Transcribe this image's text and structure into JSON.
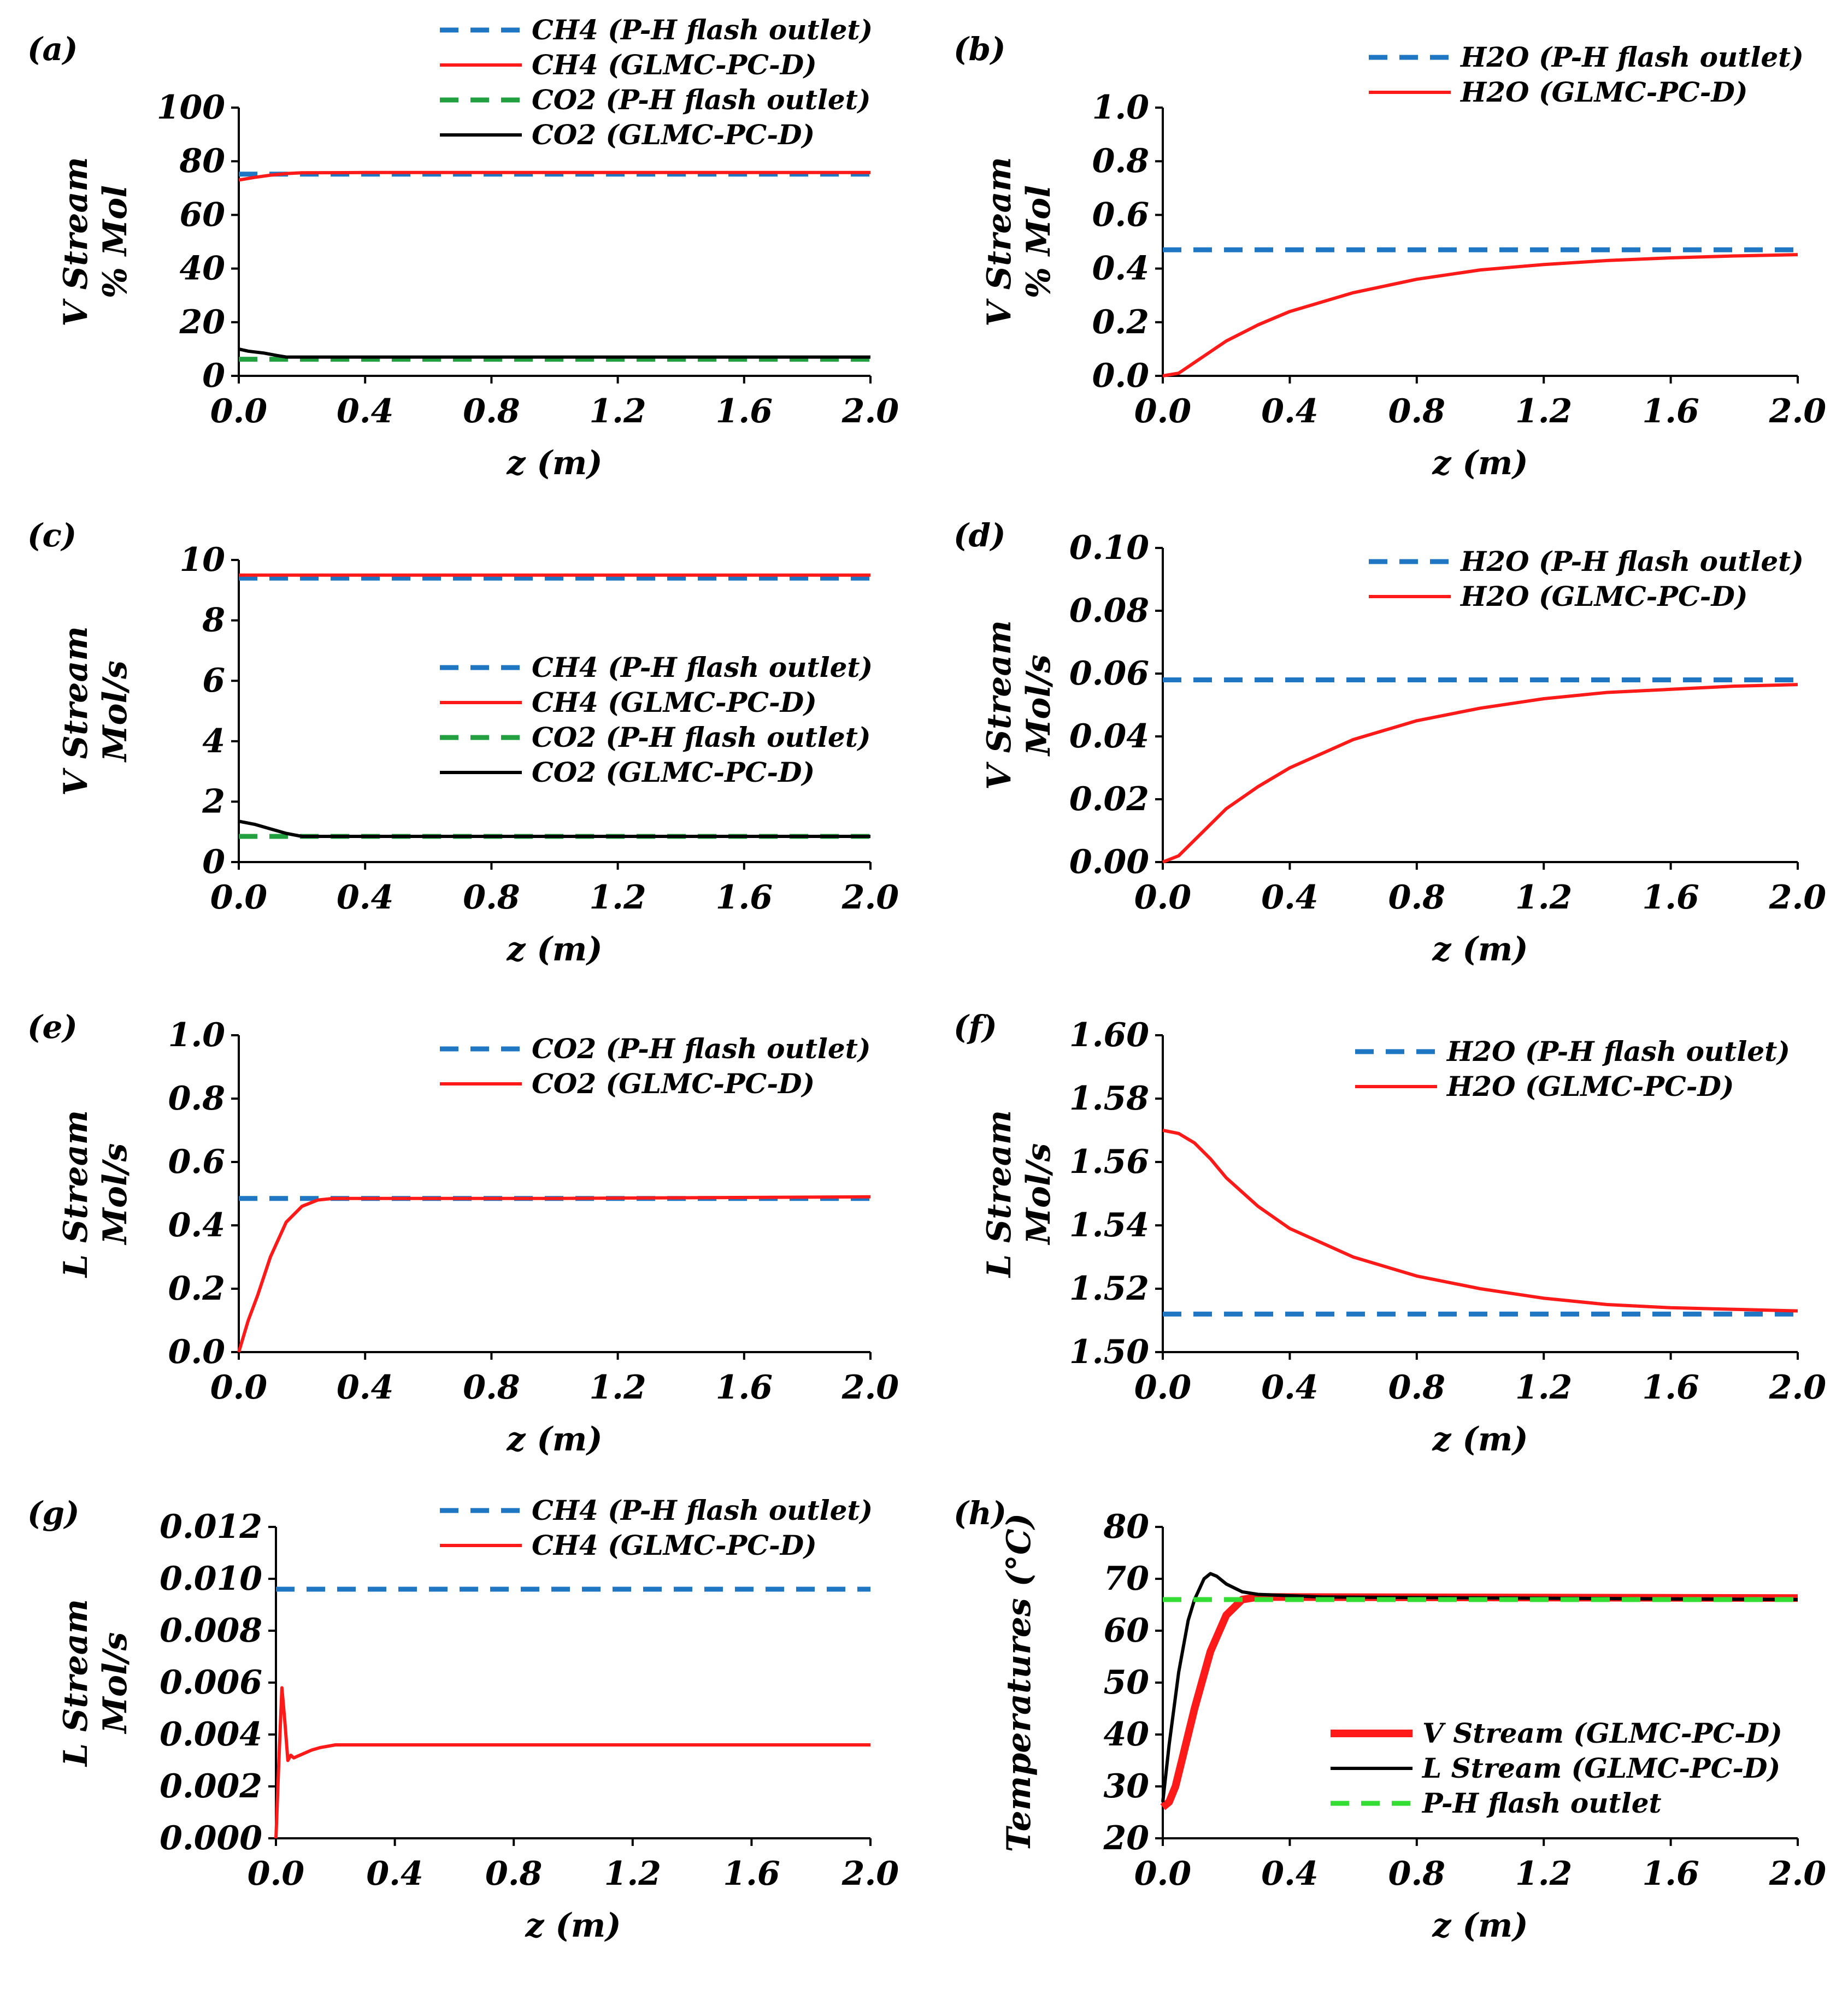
{
  "chart_data": [
    {
      "panel": "(a)",
      "type": "line",
      "xlabel": "z (m)",
      "ylabel": [
        "V Stream",
        "% Mol"
      ],
      "xlim": [
        0,
        2
      ],
      "ylim": [
        0,
        100
      ],
      "xticks": [
        "0.0",
        "0.4",
        "0.8",
        "1.2",
        "1.6",
        "2.0"
      ],
      "yticks": [
        "0",
        "20",
        "40",
        "60",
        "80",
        "100"
      ],
      "legend_position": "top-center",
      "series": [
        {
          "name": "CH4 (P-H flash outlet)",
          "style": "dashed",
          "color": "#1f77c4",
          "x": [
            0,
            2
          ],
          "y": [
            75.2,
            75.2
          ]
        },
        {
          "name": "CH4 (GLMC-PC-D)",
          "style": "solid",
          "color": "#ff1a1a",
          "x": [
            0,
            0.05,
            0.1,
            0.15,
            0.2,
            0.4,
            2
          ],
          "y": [
            73,
            74,
            74.8,
            75.4,
            75.7,
            75.8,
            75.8
          ]
        },
        {
          "name": "CO2 (P-H flash outlet)",
          "style": "dashed",
          "color": "#22a040",
          "x": [
            0,
            2
          ],
          "y": [
            6.2,
            6.2
          ]
        },
        {
          "name": "CO2 (GLMC-PC-D)",
          "style": "solid",
          "color": "#000000",
          "x": [
            0,
            0.03,
            0.08,
            0.12,
            0.15,
            0.2,
            2
          ],
          "y": [
            10,
            9.2,
            8.5,
            7.6,
            7.0,
            7.0,
            7.0
          ]
        }
      ]
    },
    {
      "panel": "(b)",
      "type": "line",
      "xlabel": "z (m)",
      "ylabel": [
        "V Stream",
        "% Mol"
      ],
      "xlim": [
        0,
        2
      ],
      "ylim": [
        0,
        1
      ],
      "xticks": [
        "0.0",
        "0.4",
        "0.8",
        "1.2",
        "1.6",
        "2.0"
      ],
      "yticks": [
        "0.0",
        "0.2",
        "0.4",
        "0.6",
        "0.8",
        "1.0"
      ],
      "legend_position": "top-right",
      "series": [
        {
          "name": "H2O (P-H flash outlet)",
          "style": "dashed",
          "color": "#1f77c4",
          "x": [
            0,
            2
          ],
          "y": [
            0.47,
            0.47
          ]
        },
        {
          "name": "H2O (GLMC-PC-D)",
          "style": "solid",
          "color": "#ff1a1a",
          "x": [
            0,
            0.05,
            0.1,
            0.15,
            0.2,
            0.3,
            0.4,
            0.6,
            0.8,
            1.0,
            1.2,
            1.4,
            1.6,
            1.8,
            2.0
          ],
          "y": [
            0,
            0.01,
            0.05,
            0.09,
            0.13,
            0.19,
            0.24,
            0.31,
            0.36,
            0.395,
            0.415,
            0.43,
            0.44,
            0.447,
            0.452
          ]
        }
      ]
    },
    {
      "panel": "(c)",
      "type": "line",
      "xlabel": "z (m)",
      "ylabel": [
        "V Stream",
        "Mol/s"
      ],
      "xlim": [
        0,
        2
      ],
      "ylim": [
        0,
        10
      ],
      "xticks": [
        "0.0",
        "0.4",
        "0.8",
        "1.2",
        "1.6",
        "2.0"
      ],
      "yticks": [
        "0",
        "2",
        "4",
        "6",
        "8",
        "10"
      ],
      "legend_position": "center-right",
      "series": [
        {
          "name": "CH4 (P-H flash outlet)",
          "style": "dashed",
          "color": "#1f77c4",
          "x": [
            0,
            2
          ],
          "y": [
            9.4,
            9.4
          ]
        },
        {
          "name": "CH4 (GLMC-PC-D)",
          "style": "solid",
          "color": "#ff1a1a",
          "x": [
            0,
            2
          ],
          "y": [
            9.5,
            9.5
          ]
        },
        {
          "name": "CO2 (P-H flash outlet)",
          "style": "dashed",
          "color": "#22a040",
          "x": [
            0,
            2
          ],
          "y": [
            0.85,
            0.85
          ]
        },
        {
          "name": "CO2 (GLMC-PC-D)",
          "style": "solid",
          "color": "#000000",
          "x": [
            0,
            0.05,
            0.1,
            0.15,
            0.2,
            2
          ],
          "y": [
            1.35,
            1.25,
            1.1,
            0.95,
            0.85,
            0.85
          ]
        }
      ]
    },
    {
      "panel": "(d)",
      "type": "line",
      "xlabel": "z (m)",
      "ylabel": [
        "V Stream",
        "Mol/s"
      ],
      "xlim": [
        0,
        2
      ],
      "ylim": [
        0,
        0.1
      ],
      "xticks": [
        "0.0",
        "0.4",
        "0.8",
        "1.2",
        "1.6",
        "2.0"
      ],
      "yticks": [
        "0.00",
        "0.02",
        "0.04",
        "0.06",
        "0.08",
        "0.10"
      ],
      "legend_position": "top-right",
      "series": [
        {
          "name": "H2O (P-H flash outlet)",
          "style": "dashed",
          "color": "#1f77c4",
          "x": [
            0,
            2
          ],
          "y": [
            0.058,
            0.058
          ]
        },
        {
          "name": "H2O (GLMC-PC-D)",
          "style": "solid",
          "color": "#ff1a1a",
          "x": [
            0,
            0.05,
            0.1,
            0.15,
            0.2,
            0.3,
            0.4,
            0.6,
            0.8,
            1.0,
            1.2,
            1.4,
            1.6,
            1.8,
            2.0
          ],
          "y": [
            0,
            0.002,
            0.007,
            0.012,
            0.017,
            0.024,
            0.03,
            0.039,
            0.045,
            0.049,
            0.052,
            0.054,
            0.055,
            0.056,
            0.0565
          ]
        }
      ]
    },
    {
      "panel": "(e)",
      "type": "line",
      "xlabel": "z (m)",
      "ylabel": [
        "L Stream",
        "Mol/s"
      ],
      "xlim": [
        0,
        2
      ],
      "ylim": [
        0,
        1
      ],
      "xticks": [
        "0.0",
        "0.4",
        "0.8",
        "1.2",
        "1.6",
        "2.0"
      ],
      "yticks": [
        "0.0",
        "0.2",
        "0.4",
        "0.6",
        "0.8",
        "1.0"
      ],
      "legend_position": "top-right",
      "series": [
        {
          "name": "CO2 (P-H flash outlet)",
          "style": "dashed",
          "color": "#1f77c4",
          "x": [
            0,
            2
          ],
          "y": [
            0.485,
            0.485
          ]
        },
        {
          "name": "CO2 (GLMC-PC-D)",
          "style": "solid",
          "color": "#ff1a1a",
          "x": [
            0,
            0.03,
            0.06,
            0.1,
            0.15,
            0.2,
            0.25,
            0.3,
            1.0,
            2.0
          ],
          "y": [
            0,
            0.1,
            0.18,
            0.3,
            0.41,
            0.46,
            0.48,
            0.485,
            0.485,
            0.49
          ]
        }
      ]
    },
    {
      "panel": "(f)",
      "type": "line",
      "xlabel": "z (m)",
      "ylabel": [
        "L Stream",
        "Mol/s"
      ],
      "xlim": [
        0,
        2
      ],
      "ylim": [
        1.5,
        1.6
      ],
      "xticks": [
        "0.0",
        "0.4",
        "0.8",
        "1.2",
        "1.6",
        "2.0"
      ],
      "yticks": [
        "1.50",
        "1.52",
        "1.54",
        "1.56",
        "1.58",
        "1.60"
      ],
      "legend_position": "top-right",
      "series": [
        {
          "name": "H2O (P-H flash outlet)",
          "style": "dashed",
          "color": "#1f77c4",
          "x": [
            0,
            2
          ],
          "y": [
            1.512,
            1.512
          ]
        },
        {
          "name": "H2O (GLMC-PC-D)",
          "style": "solid",
          "color": "#ff1a1a",
          "x": [
            0,
            0.05,
            0.1,
            0.15,
            0.2,
            0.3,
            0.4,
            0.6,
            0.8,
            1.0,
            1.2,
            1.4,
            1.6,
            1.8,
            2.0
          ],
          "y": [
            1.57,
            1.569,
            1.566,
            1.561,
            1.555,
            1.546,
            1.539,
            1.53,
            1.524,
            1.52,
            1.517,
            1.515,
            1.514,
            1.5135,
            1.513
          ]
        }
      ]
    },
    {
      "panel": "(g)",
      "type": "line",
      "xlabel": "z (m)",
      "ylabel": [
        "L Stream",
        "Mol/s"
      ],
      "xlim": [
        0,
        2
      ],
      "ylim": [
        0,
        0.012
      ],
      "xticks": [
        "0.0",
        "0.4",
        "0.8",
        "1.2",
        "1.6",
        "2.0"
      ],
      "yticks": [
        "0.000",
        "0.002",
        "0.004",
        "0.006",
        "0.008",
        "0.010",
        "0.012"
      ],
      "legend_position": "top-right",
      "series": [
        {
          "name": "CH4 (P-H flash outlet)",
          "style": "dashed",
          "color": "#1f77c4",
          "x": [
            0,
            2
          ],
          "y": [
            0.0096,
            0.0096
          ]
        },
        {
          "name": "CH4 (GLMC-PC-D)",
          "style": "solid",
          "color": "#ff1a1a",
          "x": [
            0,
            0.01,
            0.02,
            0.03,
            0.04,
            0.05,
            0.06,
            0.08,
            0.1,
            0.12,
            0.15,
            0.2,
            2.0
          ],
          "y": [
            0,
            0.003,
            0.0058,
            0.0045,
            0.003,
            0.0032,
            0.0031,
            0.0032,
            0.0033,
            0.0034,
            0.0035,
            0.0036,
            0.0036
          ]
        }
      ]
    },
    {
      "panel": "(h)",
      "type": "line",
      "xlabel": "z (m)",
      "ylabel": [
        "Temperatures (°C)"
      ],
      "xlim": [
        0,
        2
      ],
      "ylim": [
        20,
        80
      ],
      "xticks": [
        "0.0",
        "0.4",
        "0.8",
        "1.2",
        "1.6",
        "2.0"
      ],
      "yticks": [
        "20",
        "30",
        "40",
        "50",
        "60",
        "70",
        "80"
      ],
      "legend_position": "bottom-right",
      "series": [
        {
          "name": "V Stream (GLMC-PC-D)",
          "style": "solid-thick",
          "color": "#ff1a1a",
          "x": [
            0,
            0.02,
            0.04,
            0.06,
            0.1,
            0.15,
            0.2,
            0.25,
            0.3,
            2.0
          ],
          "y": [
            26,
            27,
            30,
            35,
            45,
            56,
            63,
            66,
            66.5,
            66.3
          ]
        },
        {
          "name": "L Stream (GLMC-PC-D)",
          "style": "solid",
          "color": "#000000",
          "x": [
            0,
            0.02,
            0.05,
            0.08,
            0.1,
            0.13,
            0.15,
            0.17,
            0.2,
            0.25,
            0.3,
            0.5,
            2.0
          ],
          "y": [
            27,
            38,
            52,
            62,
            66,
            70,
            71,
            70.5,
            69,
            67.5,
            67,
            66.5,
            66
          ]
        },
        {
          "name": "P-H flash outlet",
          "style": "dashed",
          "color": "#33dd33",
          "x": [
            0,
            2
          ],
          "y": [
            66,
            66
          ]
        }
      ]
    }
  ]
}
